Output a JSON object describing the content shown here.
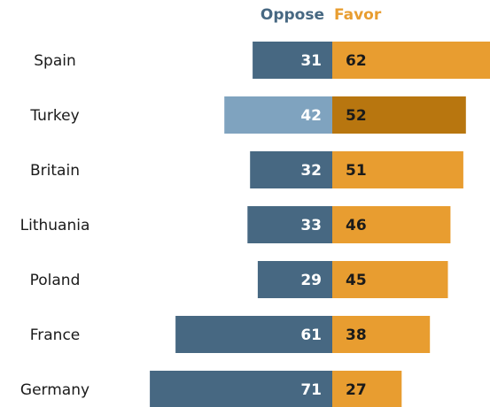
{
  "chart_data": {
    "type": "bar",
    "orientation": "diverging-horizontal",
    "categories": [
      "Spain",
      "Turkey",
      "Britain",
      "Lithuania",
      "Poland",
      "France",
      "Germany"
    ],
    "series": [
      {
        "name": "Oppose",
        "values": [
          31,
          42,
          32,
          33,
          29,
          61,
          71
        ]
      },
      {
        "name": "Favor",
        "values": [
          62,
          52,
          51,
          46,
          45,
          38,
          27
        ]
      }
    ],
    "highlighted_category": "Turkey",
    "legend_position": "top"
  },
  "colors": {
    "oppose": "#476882",
    "favor": "#E89D30",
    "oppose_highlight": "#7FA3BF",
    "favor_highlight": "#B8760F",
    "legend_oppose_text": "#476882",
    "legend_favor_text": "#E89D30"
  }
}
